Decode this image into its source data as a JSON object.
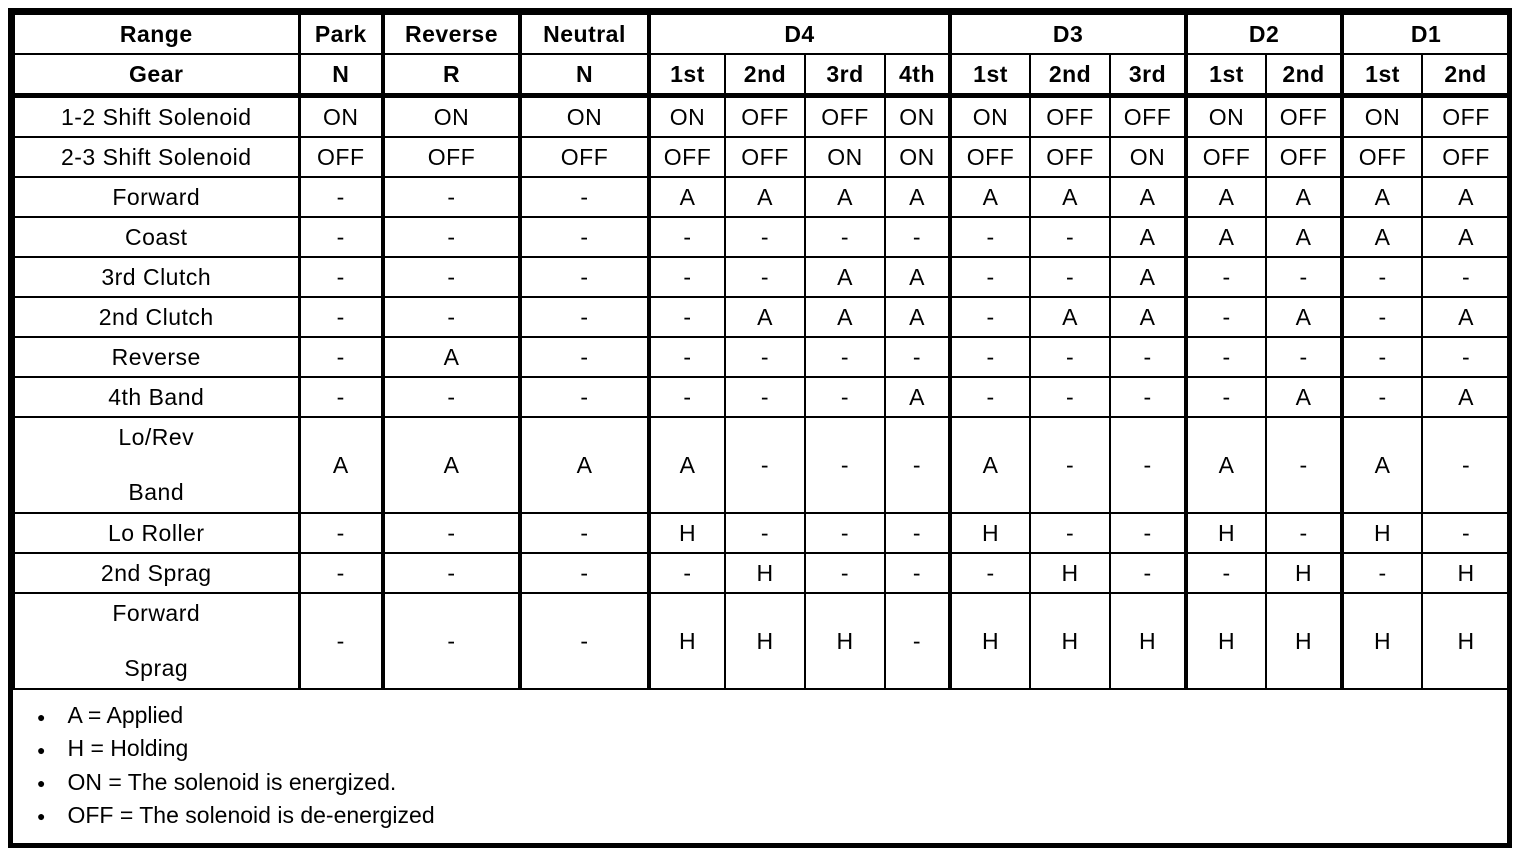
{
  "table": {
    "corner": {
      "range_label": "Range",
      "gear_label": "Gear"
    },
    "range_groups": [
      {
        "label": "Park",
        "gears": [
          "N"
        ]
      },
      {
        "label": "Reverse",
        "gears": [
          "R"
        ]
      },
      {
        "label": "Neutral",
        "gears": [
          "N"
        ]
      },
      {
        "label": "D4",
        "gears": [
          "1st",
          "2nd",
          "3rd",
          "4th"
        ]
      },
      {
        "label": "D3",
        "gears": [
          "1st",
          "2nd",
          "3rd"
        ]
      },
      {
        "label": "D2",
        "gears": [
          "1st",
          "2nd"
        ]
      },
      {
        "label": "D1",
        "gears": [
          "1st",
          "2nd"
        ]
      }
    ],
    "rows": [
      {
        "label": "1-2 Shift Solenoid",
        "tall": false,
        "values": [
          "ON",
          "ON",
          "ON",
          "ON",
          "OFF",
          "OFF",
          "ON",
          "ON",
          "OFF",
          "OFF",
          "ON",
          "OFF",
          "ON",
          "OFF"
        ]
      },
      {
        "label": "2-3 Shift Solenoid",
        "tall": false,
        "values": [
          "OFF",
          "OFF",
          "OFF",
          "OFF",
          "OFF",
          "ON",
          "ON",
          "OFF",
          "OFF",
          "ON",
          "OFF",
          "OFF",
          "OFF",
          "OFF"
        ]
      },
      {
        "label": "Forward",
        "tall": false,
        "values": [
          "-",
          "-",
          "-",
          "A",
          "A",
          "A",
          "A",
          "A",
          "A",
          "A",
          "A",
          "A",
          "A",
          "A"
        ]
      },
      {
        "label": "Coast",
        "tall": false,
        "values": [
          "-",
          "-",
          "-",
          "-",
          "-",
          "-",
          "-",
          "-",
          "-",
          "A",
          "A",
          "A",
          "A",
          "A"
        ]
      },
      {
        "label": "3rd Clutch",
        "tall": false,
        "values": [
          "-",
          "-",
          "-",
          "-",
          "-",
          "A",
          "A",
          "-",
          "-",
          "A",
          "-",
          "-",
          "-",
          "-"
        ]
      },
      {
        "label": "2nd Clutch",
        "tall": false,
        "values": [
          "-",
          "-",
          "-",
          "-",
          "A",
          "A",
          "A",
          "-",
          "A",
          "A",
          "-",
          "A",
          "-",
          "A"
        ]
      },
      {
        "label": "Reverse",
        "tall": false,
        "values": [
          "-",
          "A",
          "-",
          "-",
          "-",
          "-",
          "-",
          "-",
          "-",
          "-",
          "-",
          "-",
          "-",
          "-"
        ]
      },
      {
        "label": "4th Band",
        "tall": false,
        "values": [
          "-",
          "-",
          "-",
          "-",
          "-",
          "-",
          "A",
          "-",
          "-",
          "-",
          "-",
          "A",
          "-",
          "A"
        ]
      },
      {
        "label": "Lo/Rev\n\nBand",
        "tall": true,
        "values": [
          "A",
          "A",
          "A",
          "A",
          "-",
          "-",
          "-",
          "A",
          "-",
          "-",
          "A",
          "-",
          "A",
          "-"
        ]
      },
      {
        "label": "Lo Roller",
        "tall": false,
        "values": [
          "-",
          "-",
          "-",
          "H",
          "-",
          "-",
          "-",
          "H",
          "-",
          "-",
          "H",
          "-",
          "H",
          "-"
        ]
      },
      {
        "label": "2nd Sprag",
        "tall": false,
        "values": [
          "-",
          "-",
          "-",
          "-",
          "H",
          "-",
          "-",
          "-",
          "H",
          "-",
          "-",
          "H",
          "-",
          "H"
        ]
      },
      {
        "label": "Forward\n\nSprag",
        "tall": true,
        "values": [
          "-",
          "-",
          "-",
          "H",
          "H",
          "H",
          "-",
          "H",
          "H",
          "H",
          "H",
          "H",
          "H",
          "H"
        ]
      }
    ]
  },
  "legend": {
    "bullet": "●",
    "items": [
      "A = Applied",
      "H = Holding",
      "ON = The solenoid is energized.",
      "OFF = The solenoid is de-energized"
    ]
  }
}
